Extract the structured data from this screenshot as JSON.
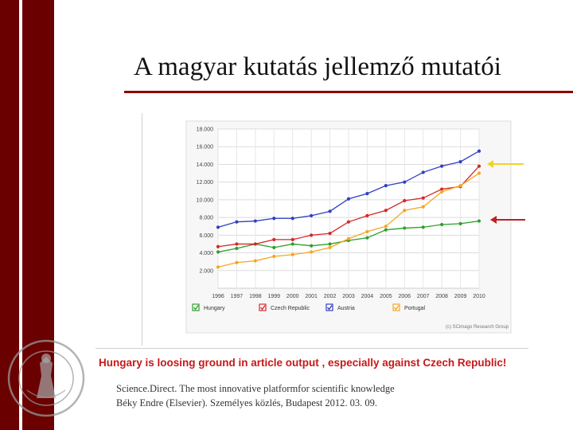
{
  "slide": {
    "title": "A magyar kutatás jellemző mutatói",
    "caption": "Hungary is loosing ground in article output , especially against Czech Republic!",
    "source_line1": "Science.Direct. The most innovative platformfor scientific knowledge",
    "source_line2": "Béky Endre (Elsevier). Személyes közlés, Budapest 2012. 03. 09."
  },
  "colors": {
    "sidebar": "#6a0000",
    "title_rule": "#8b0000",
    "caption": "#c81818",
    "arrow_yellow": "#f2d22a",
    "arrow_red": "#c02020"
  },
  "chart_data": {
    "type": "line",
    "credit": "(c) SCimago Research Group",
    "x": [
      1996,
      1997,
      1998,
      1999,
      2000,
      2001,
      2002,
      2003,
      2004,
      2005,
      2006,
      2007,
      2008,
      2009,
      2010
    ],
    "x_tick_labels": [
      "1996",
      "1997",
      "1998",
      "1999",
      "2000",
      "2001",
      "2002",
      "2003",
      "2004",
      "2005",
      "2006",
      "2007",
      "2008",
      "2009",
      "2010"
    ],
    "ylim": [
      0,
      18000
    ],
    "y_ticks": [
      2000,
      4000,
      6000,
      8000,
      10000,
      12000,
      14000,
      16000,
      18000
    ],
    "y_tick_labels": [
      "2.000",
      "4.000",
      "6.000",
      "8.000",
      "10.000",
      "12.000",
      "14.000",
      "16.000",
      "18.000"
    ],
    "grid": true,
    "legend_position": "bottom",
    "series": [
      {
        "name": "Hungary",
        "color": "#2ca02c",
        "values": [
          4100,
          4500,
          5000,
          4600,
          5000,
          4800,
          5000,
          5400,
          5700,
          6600,
          6800,
          6900,
          7200,
          7300,
          7600
        ]
      },
      {
        "name": "Czech Republic",
        "color": "#d62728",
        "values": [
          4700,
          5000,
          5000,
          5500,
          5500,
          6000,
          6200,
          7500,
          8200,
          8800,
          9900,
          10200,
          11200,
          11500,
          13800
        ]
      },
      {
        "name": "Austria",
        "color": "#3040c0",
        "values": [
          6900,
          7500,
          7600,
          7900,
          7900,
          8200,
          8700,
          10100,
          10700,
          11600,
          12000,
          13100,
          13800,
          14300,
          15500
        ]
      },
      {
        "name": "Portugal",
        "color": "#f5a623",
        "values": [
          2400,
          2900,
          3100,
          3600,
          3800,
          4100,
          4600,
          5600,
          6400,
          7000,
          8800,
          9200,
          10900,
          11600,
          13000
        ]
      }
    ]
  }
}
